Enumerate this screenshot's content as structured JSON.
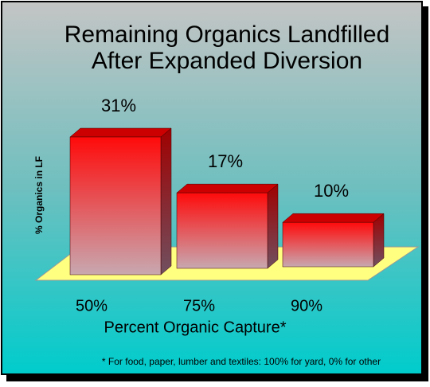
{
  "chart_data": {
    "type": "bar3d",
    "title": [
      "Remaining Organics Landfilled",
      "After Expanded Diversion"
    ],
    "y_label": "% Organics in LF",
    "x_label": "Percent Organic Capture*",
    "footnote": "* For food, paper, lumber and textiles: 100% for yard, 0% for other",
    "categories": [
      "50%",
      "75%",
      "90%"
    ],
    "values": [
      31,
      17,
      10
    ],
    "value_labels": [
      "31%",
      "17%",
      "10%"
    ],
    "color": "#ff1010"
  }
}
